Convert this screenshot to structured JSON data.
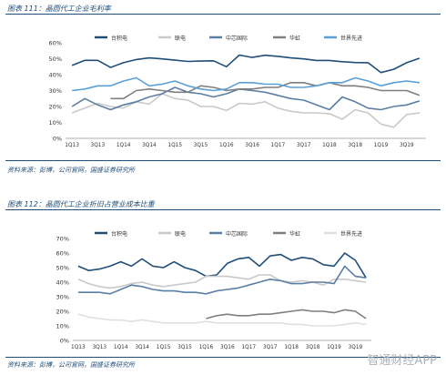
{
  "fig1": {
    "title_text": "图表 111：晶圆代工企业毛利率",
    "source_text": "资料来源：彭博，公司官网，国盛证券研究所"
  },
  "fig2": {
    "title_text": "图表 112：晶圆代工企业折旧占营业成本比重",
    "source_text": "资料来源：彭博，公司官网，国盛证券研究所"
  },
  "watermark": "智通财经APP",
  "chart_data": [
    {
      "type": "line",
      "title": "晶圆代工企业毛利率",
      "ylim": [
        0,
        60
      ],
      "yticks": [
        "0%",
        "10%",
        "20%",
        "30%",
        "40%",
        "50%",
        "60%"
      ],
      "grid": false,
      "legend_position": "top",
      "categories": [
        "1Q13",
        "2Q13",
        "3Q13",
        "4Q13",
        "1Q14",
        "2Q14",
        "3Q14",
        "4Q14",
        "1Q15",
        "2Q15",
        "3Q15",
        "4Q15",
        "1Q16",
        "2Q16",
        "3Q16",
        "4Q16",
        "1Q17",
        "2Q17",
        "3Q17",
        "4Q17",
        "1Q18",
        "2Q18",
        "3Q18",
        "4Q18",
        "1Q19",
        "2Q19",
        "3Q19",
        "4Q19"
      ],
      "xtick_labels": [
        "1Q13",
        "3Q13",
        "1Q14",
        "3Q14",
        "1Q15",
        "3Q15",
        "1Q16",
        "3Q16",
        "1Q17",
        "3Q17",
        "1Q18",
        "3Q18",
        "1Q19",
        "3Q19"
      ],
      "series": [
        {
          "name": "台积电",
          "color": "#1f4e79",
          "values": [
            45.8,
            49,
            49,
            44.5,
            47.5,
            49.5,
            50.5,
            49.9,
            49.1,
            48.3,
            48.5,
            48.7,
            45,
            52.3,
            50.8,
            52.2,
            51.5,
            50.5,
            49.9,
            48.9,
            48.9,
            48.1,
            47.6,
            47.5,
            41.3,
            43.4,
            47.5,
            50.3
          ]
        },
        {
          "name": "联电",
          "color": "#c9c9c9",
          "values": [
            16,
            19,
            22,
            20,
            19,
            23,
            21.5,
            28,
            25,
            24,
            20,
            20,
            17.5,
            22,
            21.5,
            23,
            19,
            17,
            16,
            16,
            15.5,
            12,
            18,
            16,
            9,
            7,
            15,
            16
          ]
        },
        {
          "name": "中芯国际",
          "color": "#5b7ea4",
          "values": [
            20,
            25,
            21,
            18,
            21,
            23,
            26,
            28,
            32,
            29,
            28,
            26,
            28,
            31,
            30,
            29,
            27,
            25,
            24,
            21,
            18,
            26,
            23,
            19,
            18,
            20,
            21,
            23.5
          ]
        },
        {
          "name": "华虹",
          "color": "#7f7f7f",
          "values": [
            null,
            null,
            null,
            25,
            25,
            30,
            31,
            30,
            29,
            29,
            33,
            32,
            30,
            31,
            31,
            32,
            32,
            35,
            35,
            33,
            35,
            33,
            33,
            32,
            30,
            30,
            30,
            27
          ]
        },
        {
          "name": "世界先进",
          "color": "#5aa0d8",
          "values": [
            30,
            31,
            33,
            33,
            36,
            38,
            33,
            34,
            36,
            33,
            31,
            30,
            31,
            35,
            35,
            34,
            34,
            32,
            32,
            33,
            35,
            35,
            38,
            36,
            33,
            35,
            36,
            35
          ]
        }
      ]
    },
    {
      "type": "line",
      "title": "晶圆代工企业折旧占营业成本比重",
      "ylim": [
        0,
        70
      ],
      "yticks": [
        "0%",
        "10%",
        "20%",
        "30%",
        "40%",
        "50%",
        "60%",
        "70%"
      ],
      "grid": false,
      "legend_position": "top",
      "categories": [
        "1Q13",
        "2Q13",
        "3Q13",
        "4Q13",
        "1Q14",
        "2Q14",
        "3Q14",
        "4Q14",
        "1Q15",
        "2Q15",
        "3Q15",
        "4Q15",
        "1Q16",
        "2Q16",
        "3Q16",
        "4Q16",
        "1Q17",
        "2Q17",
        "3Q17",
        "4Q17",
        "1Q18",
        "2Q18",
        "3Q18",
        "4Q18",
        "1Q19",
        "2Q19",
        "3Q19",
        "4Q19"
      ],
      "xtick_labels": [
        "1Q13",
        "3Q13",
        "1Q14",
        "3Q14",
        "1Q15",
        "3Q15",
        "1Q16",
        "3Q16",
        "1Q17",
        "3Q17",
        "1Q18",
        "3Q18",
        "1Q19",
        "3Q19"
      ],
      "series": [
        {
          "name": "台积电",
          "color": "#1f4e79",
          "values": [
            51,
            48,
            49,
            51,
            54,
            51,
            56,
            51,
            50,
            54,
            50,
            48,
            44,
            45,
            53,
            56,
            57,
            51,
            58,
            59,
            55,
            57,
            56,
            52,
            51,
            60,
            55,
            43
          ]
        },
        {
          "name": "联电",
          "color": "#c9c9c9",
          "values": [
            42,
            39,
            37,
            36,
            37,
            39,
            40,
            38,
            37,
            38,
            39,
            40,
            44,
            44,
            44,
            43,
            42,
            45,
            45,
            41,
            40,
            41,
            40,
            38,
            42,
            42,
            41,
            40
          ]
        },
        {
          "name": "中芯国际",
          "color": "#5b7ea4",
          "values": [
            33,
            33,
            33,
            32,
            35,
            38,
            37,
            35,
            34,
            34,
            33,
            33,
            32,
            34,
            35,
            36,
            38,
            40,
            42,
            41,
            39,
            39,
            40,
            40,
            39,
            51,
            44,
            43
          ]
        },
        {
          "name": "华虹",
          "color": "#7f7f7f",
          "values": [
            null,
            null,
            null,
            null,
            null,
            null,
            null,
            null,
            null,
            null,
            null,
            null,
            15,
            17,
            18,
            17,
            17,
            18,
            18,
            19,
            20,
            21,
            20,
            20,
            19,
            21,
            20,
            15
          ]
        },
        {
          "name": "世界先进",
          "color": "#e0e0e0",
          "values": [
            18,
            16,
            15,
            14,
            14,
            13,
            14,
            13,
            12,
            12,
            12,
            12,
            13,
            12,
            12,
            12,
            12,
            12,
            12,
            12,
            11,
            11,
            10,
            10,
            10,
            11,
            12,
            11
          ]
        }
      ]
    }
  ]
}
